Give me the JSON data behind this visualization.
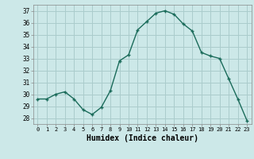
{
  "x": [
    0,
    1,
    2,
    3,
    4,
    5,
    6,
    7,
    8,
    9,
    10,
    11,
    12,
    13,
    14,
    15,
    16,
    17,
    18,
    19,
    20,
    21,
    22,
    23
  ],
  "y": [
    29.6,
    29.6,
    30.0,
    30.2,
    29.6,
    28.7,
    28.3,
    28.9,
    30.3,
    32.8,
    33.3,
    35.4,
    36.1,
    36.8,
    37.0,
    36.7,
    35.9,
    35.3,
    33.5,
    33.2,
    33.0,
    31.3,
    29.6,
    27.8
  ],
  "bg_color": "#cce8e8",
  "grid_color": "#aacccc",
  "line_color": "#1a6b5a",
  "marker_color": "#1a6b5a",
  "xlabel": "Humidex (Indice chaleur)",
  "ylim": [
    27.5,
    37.5
  ],
  "yticks": [
    28,
    29,
    30,
    31,
    32,
    33,
    34,
    35,
    36,
    37
  ],
  "xticks": [
    0,
    1,
    2,
    3,
    4,
    5,
    6,
    7,
    8,
    9,
    10,
    11,
    12,
    13,
    14,
    15,
    16,
    17,
    18,
    19,
    20,
    21,
    22,
    23
  ],
  "xlim": [
    -0.5,
    23.5
  ]
}
